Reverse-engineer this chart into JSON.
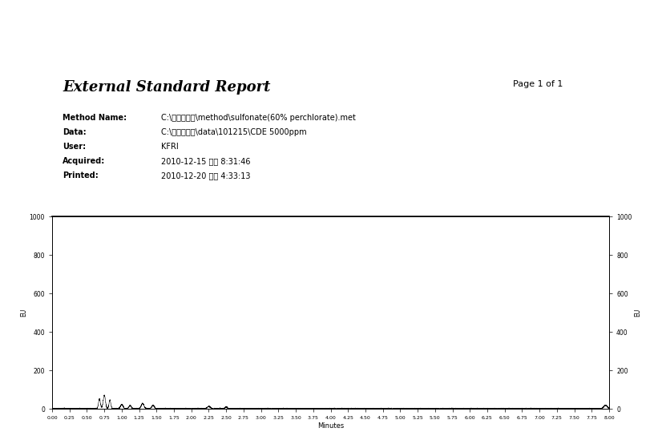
{
  "title": "External Standard Report",
  "page": "Page 1 of 1",
  "method_name_label": "Method Name:",
  "method_name_value": "C:\\계면활성제\\method\\sulfonate(60% perchlorate).met",
  "data_label": "Data:",
  "data_value": "C:\\계면활성제\\data\\101215\\CDE 5000ppm",
  "user_label": "User:",
  "user_value": "KFRI",
  "acquired_label": "Acquired:",
  "acquired_value": "2010-12-15 오후 8:31:46",
  "printed_label": "Printed:",
  "printed_value": "2010-12-20 오후 4:33:13",
  "xlabel": "Minutes",
  "ylabel": "EU",
  "xmin": 0.0,
  "xmax": 8.0,
  "ymin": 0,
  "ymax": 1000,
  "yticks": [
    0,
    200,
    400,
    600,
    800,
    1000
  ],
  "xticks": [
    0.0,
    0.25,
    0.5,
    0.75,
    1.0,
    1.25,
    1.5,
    1.75,
    2.0,
    2.25,
    2.5,
    2.75,
    3.0,
    3.25,
    3.5,
    3.75,
    4.0,
    4.25,
    4.5,
    4.75,
    5.0,
    5.25,
    5.5,
    5.75,
    6.0,
    6.25,
    6.5,
    6.75,
    7.0,
    7.25,
    7.5,
    7.75,
    8.0
  ],
  "background_color": "#ffffff",
  "line_color": "#000000",
  "text_color": "#000000"
}
